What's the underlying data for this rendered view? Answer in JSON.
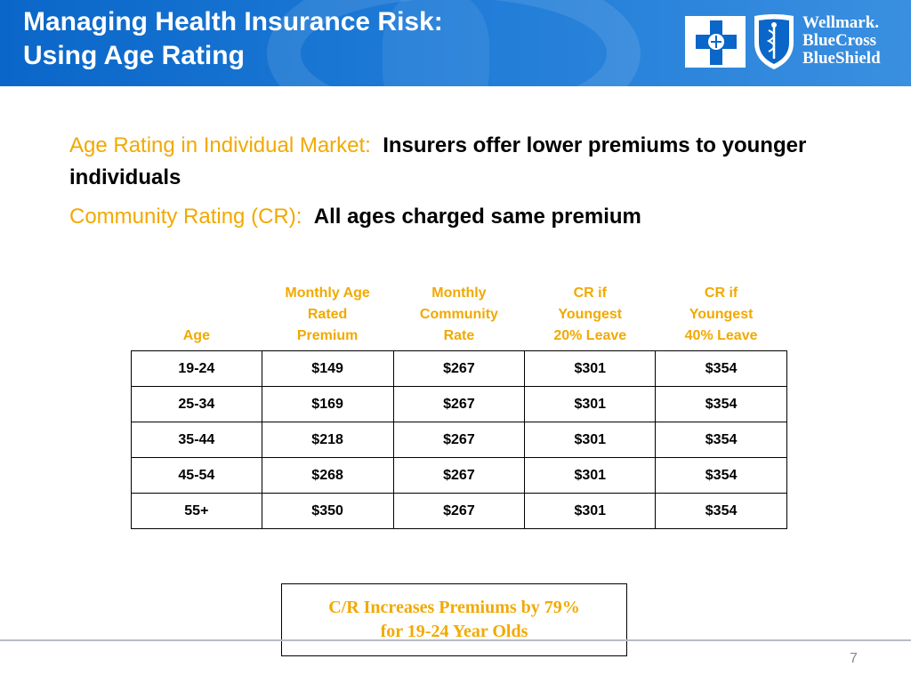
{
  "header": {
    "title_line1": "Managing Health Insurance Risk:",
    "title_line2": "Using Age Rating",
    "logo": {
      "line1": "Wellmark.",
      "line2": "BlueCross",
      "line3": "BlueShield",
      "cross_icon": "blue-cross-icon",
      "shield_icon": "blue-shield-icon"
    }
  },
  "bullets": [
    {
      "label": "Age Rating in Individual Market:",
      "text": "Insurers offer lower premiums to younger individuals"
    },
    {
      "label": "Community Rating (CR):",
      "text": "All ages charged same premium"
    }
  ],
  "table": {
    "headers": [
      [
        "Age"
      ],
      [
        "Monthly Age",
        "Rated",
        "Premium"
      ],
      [
        "Monthly",
        "Community",
        "Rate"
      ],
      [
        "CR if",
        "Youngest",
        "20% Leave"
      ],
      [
        "CR if",
        "Youngest",
        "40% Leave"
      ]
    ],
    "rows": [
      [
        "19-24",
        "$149",
        "$267",
        "$301",
        "$354"
      ],
      [
        "25-34",
        "$169",
        "$267",
        "$301",
        "$354"
      ],
      [
        "35-44",
        "$218",
        "$267",
        "$301",
        "$354"
      ],
      [
        "45-54",
        "$268",
        "$267",
        "$301",
        "$354"
      ],
      [
        "55+",
        "$350",
        "$267",
        "$301",
        "$354"
      ]
    ]
  },
  "callout": {
    "line1": "C/R Increases Premiums by 79%",
    "line2": "for 19-24 Year Olds"
  },
  "footer": {
    "page_number": "7"
  },
  "colors": {
    "header_blue": "#0a66c8",
    "accent_gold": "#f2a900",
    "footer_line": "#b8bcc8"
  }
}
